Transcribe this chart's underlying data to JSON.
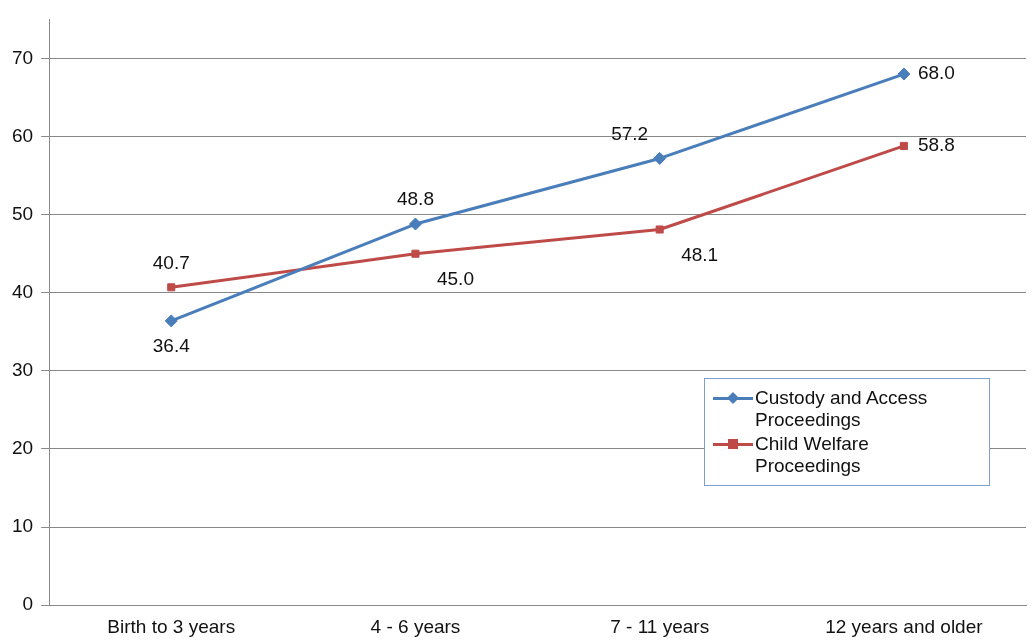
{
  "chart_data": {
    "type": "line",
    "categories": [
      "Birth to 3 years",
      "4 - 6 years",
      "7 - 11 years",
      "12 years and older"
    ],
    "series": [
      {
        "name": "Custody and Access Proceedings",
        "color": "#4a7ebb",
        "marker": "diamond",
        "values": [
          36.4,
          48.8,
          57.2,
          68.0
        ],
        "value_labels": [
          "36.4",
          "48.8",
          "57.2",
          "68.0"
        ]
      },
      {
        "name": "Child Welfare Proceedings",
        "color": "#be4b48",
        "marker": "square",
        "values": [
          40.7,
          45.0,
          48.1,
          58.8
        ],
        "value_labels": [
          "40.7",
          "45.0",
          "48.1",
          "58.8"
        ]
      }
    ],
    "ylim": [
      0,
      75
    ],
    "yticks": [
      0,
      10,
      20,
      30,
      40,
      50,
      60,
      70
    ],
    "grid": "y",
    "legend": "right"
  }
}
